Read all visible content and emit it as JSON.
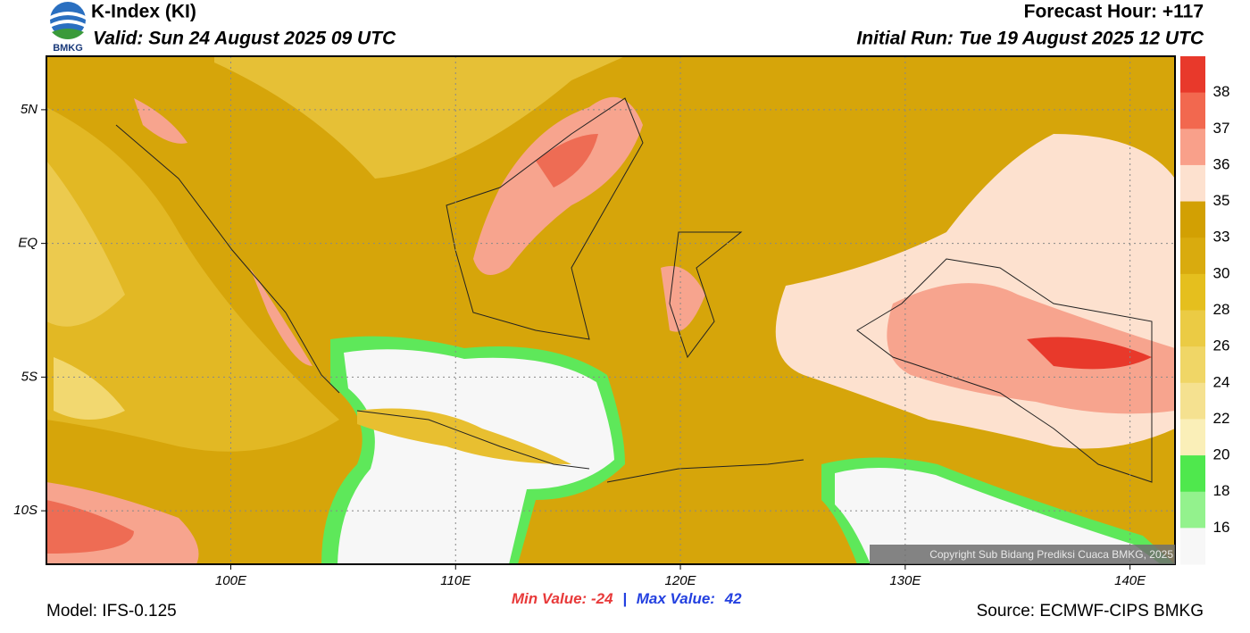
{
  "header": {
    "logo": "BMKG",
    "title": "K-Index (KI)",
    "valid": "Valid: Sun 24 August 2025 09 UTC",
    "forecast_hour": "Forecast Hour: +117",
    "initial_run": "Initial Run: Tue 19 August 2025 12 UTC"
  },
  "map": {
    "lonlim": [
      91.8,
      142
    ],
    "latlim": [
      -12,
      7
    ],
    "lonticks": [
      {
        "value": 100,
        "label": "100E"
      },
      {
        "value": 110,
        "label": "110E"
      },
      {
        "value": 120,
        "label": "120E"
      },
      {
        "value": 130,
        "label": "130E"
      },
      {
        "value": 140,
        "label": "140E"
      }
    ],
    "latticks": [
      {
        "value": 5,
        "label": "5N"
      },
      {
        "value": 0,
        "label": "EQ"
      },
      {
        "value": -5,
        "label": "5S"
      },
      {
        "value": -10,
        "label": "10S"
      }
    ],
    "copyright": "Copyright Sub Bidang Prediksi Cuaca BMKG, 2025"
  },
  "colorbar": {
    "ticks": [
      38,
      37,
      36,
      35,
      33,
      30,
      28,
      26,
      24,
      22,
      20,
      18,
      16
    ],
    "colors": [
      "#e8392b",
      "#f2684f",
      "#f9a08a",
      "#fde1cf",
      "#d2a003",
      "#d9ab0e",
      "#e5bf1e",
      "#ebcb44",
      "#f0d666",
      "#f5e190",
      "#faefb8",
      "#4fe84d",
      "#93f28d",
      "#f7f7f7"
    ]
  },
  "stats": {
    "min_label": "Min Value:",
    "min": -24,
    "separator": "|",
    "max_label": "Max Value:",
    "max": 42
  },
  "footer": {
    "model": "Model: IFS-0.125",
    "source": "Source: ECMWF-CIPS BMKG"
  }
}
